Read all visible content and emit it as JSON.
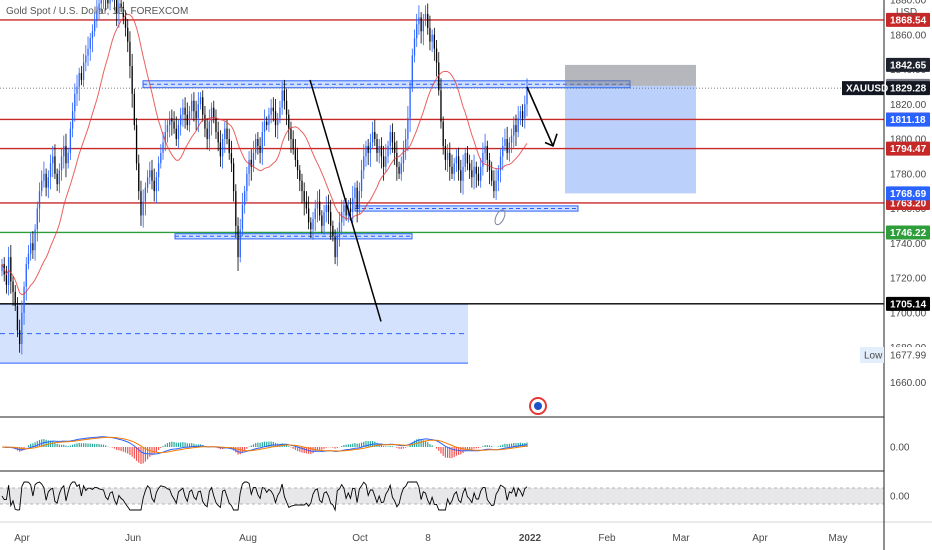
{
  "header": {
    "symbol_title": "Gold Spot / U.S. Dollar, 1D, FOREXCOM",
    "currency": "USD"
  },
  "chart_data": {
    "type": "candlestick",
    "title": "",
    "price_ylim": [
      1640,
      1880
    ],
    "price_ticks": [
      1660,
      1680,
      1700,
      1720,
      1740,
      1760,
      1780,
      1800,
      1820,
      1840,
      1860,
      1880
    ],
    "price_tick_labels": [
      "1660.00",
      "1680.00",
      "1700.00",
      "1720.00",
      "1740.00",
      "1760.00",
      "1780.00",
      "1800.00",
      "1820.00",
      "1840.00",
      "1860.00",
      "1880.00"
    ],
    "x_tick_labels": [
      "Apr",
      "Jun",
      "Aug",
      "Oct",
      "8",
      "2022",
      "Feb",
      "Mar",
      "Apr",
      "May"
    ],
    "levels": [
      {
        "label": "1868.54",
        "value": 1868.54,
        "color": "#c62828"
      },
      {
        "label": "1811.25",
        "value": 1811.25,
        "color": "#c62828"
      },
      {
        "label": "1794.47",
        "value": 1794.47,
        "color": "#c62828"
      },
      {
        "label": "1763.20",
        "value": 1763.2,
        "color": "#c62828"
      },
      {
        "label": "1746.22",
        "value": 1746.22,
        "color": "#2e9e3a"
      },
      {
        "label": "1705.14",
        "value": 1705.14,
        "color": "#000000"
      }
    ],
    "price_tags": [
      {
        "label": "1842.65",
        "value": 1842.65,
        "color": "#1e222d"
      },
      {
        "label": "1830.55",
        "value": 1830.55,
        "color": "#787b86"
      },
      {
        "label": "1829.28",
        "value": 1829.28,
        "color": "#131722"
      },
      {
        "label": "1811.18",
        "value": 1811.18,
        "color": "#2962ff"
      },
      {
        "label": "1768.69",
        "value": 1768.69,
        "color": "#2962ff"
      }
    ],
    "last_price": {
      "symbol": "XAUUSD",
      "value": 1829.28
    },
    "low": {
      "label": "Low",
      "value": "1677.99"
    },
    "position_box": {
      "entry": 1830.55,
      "stop": 1842.65,
      "target": 1768.69
    },
    "closes": [
      1728,
      1722,
      1716,
      1732,
      1718,
      1712,
      1704,
      1690,
      1682,
      1700,
      1715,
      1728,
      1734,
      1740,
      1736,
      1748,
      1760,
      1770,
      1776,
      1780,
      1772,
      1778,
      1786,
      1790,
      1780,
      1774,
      1782,
      1790,
      1796,
      1786,
      1792,
      1806,
      1816,
      1826,
      1830,
      1838,
      1834,
      1844,
      1848,
      1852,
      1858,
      1862,
      1868,
      1874,
      1878,
      1882,
      1886,
      1882,
      1878,
      1884,
      1888,
      1880,
      1872,
      1878,
      1876,
      1870,
      1864,
      1856,
      1842,
      1826,
      1808,
      1786,
      1770,
      1756,
      1764,
      1772,
      1778,
      1782,
      1776,
      1770,
      1778,
      1786,
      1792,
      1798,
      1804,
      1808,
      1812,
      1810,
      1806,
      1800,
      1808,
      1814,
      1818,
      1814,
      1808,
      1816,
      1822,
      1816,
      1812,
      1820,
      1824,
      1814,
      1806,
      1800,
      1810,
      1818,
      1812,
      1804,
      1798,
      1790,
      1800,
      1806,
      1800,
      1792,
      1786,
      1770,
      1750,
      1732,
      1748,
      1762,
      1770,
      1780,
      1788,
      1784,
      1792,
      1800,
      1796,
      1792,
      1804,
      1810,
      1808,
      1814,
      1818,
      1816,
      1808,
      1812,
      1818,
      1828,
      1822,
      1814,
      1806,
      1800,
      1794,
      1788,
      1782,
      1776,
      1770,
      1764,
      1760,
      1752,
      1748,
      1754,
      1760,
      1764,
      1756,
      1750,
      1758,
      1762,
      1758,
      1750,
      1744,
      1732,
      1744,
      1752,
      1758,
      1762,
      1756,
      1760,
      1758,
      1766,
      1772,
      1760,
      1770,
      1782,
      1790,
      1796,
      1792,
      1798,
      1804,
      1800,
      1792,
      1796,
      1790,
      1784,
      1790,
      1796,
      1804,
      1798,
      1792,
      1784,
      1780,
      1786,
      1794,
      1800,
      1812,
      1830,
      1848,
      1858,
      1866,
      1870,
      1862,
      1868,
      1872,
      1864,
      1856,
      1860,
      1852,
      1844,
      1828,
      1810,
      1796,
      1788,
      1792,
      1784,
      1780,
      1786,
      1790,
      1782,
      1776,
      1784,
      1792,
      1786,
      1782,
      1778,
      1784,
      1780,
      1776,
      1784,
      1792,
      1796,
      1788,
      1782,
      1776,
      1770,
      1776,
      1782,
      1790,
      1796,
      1800,
      1792,
      1798,
      1802,
      1808,
      1804,
      1812,
      1816,
      1812,
      1820,
      1829
    ],
    "macd_zero_label": "0.00",
    "rsi_zero_label": "0.00"
  }
}
